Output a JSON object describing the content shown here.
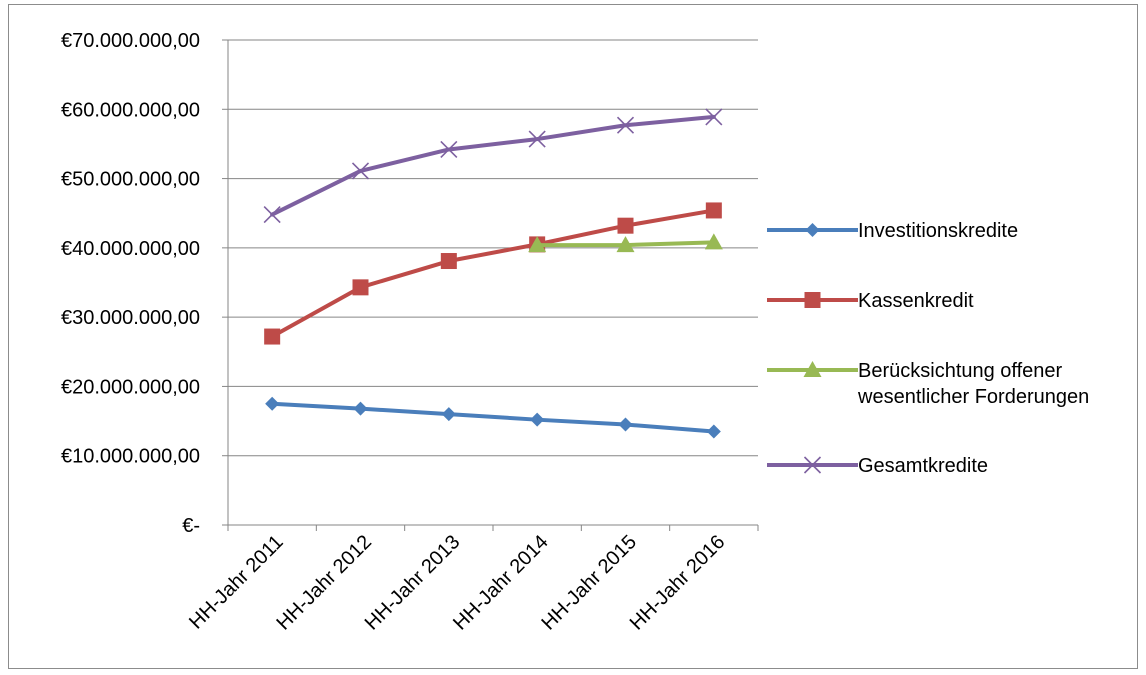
{
  "chart_data": {
    "type": "line",
    "title": "",
    "xlabel": "",
    "ylabel": "",
    "categories": [
      "HH-Jahr 2011",
      "HH-Jahr 2012",
      "HH-Jahr 2013",
      "HH-Jahr 2014",
      "HH-Jahr 2015",
      "HH-Jahr 2016"
    ],
    "ylim": [
      0,
      70000000
    ],
    "yticks": [
      0,
      10000000,
      20000000,
      30000000,
      40000000,
      50000000,
      60000000,
      70000000
    ],
    "ytick_labels": [
      "€-",
      "€10.000.000,00",
      "€20.000.000,00",
      "€30.000.000,00",
      "€40.000.000,00",
      "€50.000.000,00",
      "€60.000.000,00",
      "€70.000.000,00"
    ],
    "grid": true,
    "legend_position": "right",
    "series": [
      {
        "name": "Investitionskredite",
        "color": "#4a7ebb",
        "marker": "diamond",
        "values": [
          17500000,
          16800000,
          16000000,
          15200000,
          14500000,
          13500000
        ]
      },
      {
        "name": "Kassenkredit",
        "color": "#be4b48",
        "marker": "square",
        "values": [
          27200000,
          34300000,
          38100000,
          40500000,
          43200000,
          45400000
        ]
      },
      {
        "name_lines": [
          "Berücksichtung offener",
          "wesentlicher Forderungen"
        ],
        "color": "#98b954",
        "marker": "triangle",
        "values": [
          null,
          null,
          null,
          40400000,
          40400000,
          40800000
        ]
      },
      {
        "name": "Gesamtkredite",
        "color": "#7d60a0",
        "marker": "x",
        "values": [
          44800000,
          51100000,
          54200000,
          55700000,
          57700000,
          58900000
        ]
      }
    ]
  }
}
